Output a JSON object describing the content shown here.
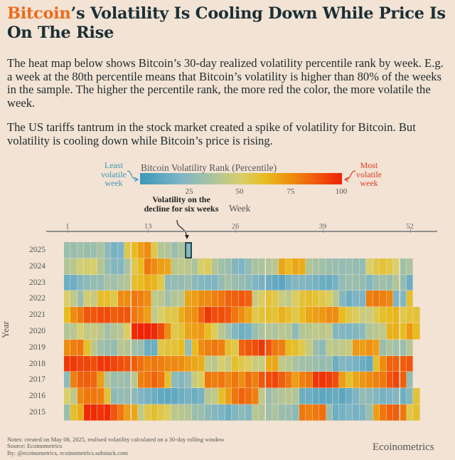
{
  "title": {
    "highlight": "Bitcoin",
    "rest": "’s Volatility Is Cooling Down While Price Is On The Rise"
  },
  "paragraphs": [
    "The heat map below shows Bitcoin’s 30-day realized volatility percentile rank by week. E.g. a week at the 80th percentile means that Bitcoin’s volatility is higher than 80% of the weeks in the sample. The higher the percentile rank, the more red the color, the more volatile the week.",
    "The US tariffs tantrum in the stock market created a spike of volatility for Bitcoin. But volatility is cooling down while Bitcoin’s price is rising."
  ],
  "legend": {
    "title": "Bitcoin Volatility Rank (Percentile)",
    "ticks": [
      "25",
      "50",
      "75",
      "100"
    ],
    "least_label": "Least volatile week",
    "most_label": "Most volatile week"
  },
  "annotation": "Volatility  on the decline for six weeks",
  "notes": [
    "Notes: created on May 08, 2025, realised volatility calculated on a 30-day rolling window",
    "Source: Ecoinometrics",
    "By: @ecoinometrics, ecoinometrics.substack.com"
  ],
  "brand": "Ecoinometrics",
  "colors": {
    "title_highlight": "#ee6a1a",
    "least": "#3f97b5",
    "most": "#d93a22",
    "scale": [
      {
        "value": 0,
        "color": "#3a98bb"
      },
      {
        "value": 20,
        "color": "#7db5c4"
      },
      {
        "value": 35,
        "color": "#a9c3a2"
      },
      {
        "value": 50,
        "color": "#d8cf6a"
      },
      {
        "value": 62,
        "color": "#e8bc1e"
      },
      {
        "value": 75,
        "color": "#ee8c10"
      },
      {
        "value": 88,
        "color": "#f0560c"
      },
      {
        "value": 100,
        "color": "#ee2205"
      }
    ]
  },
  "chart_data": {
    "type": "heatmap",
    "xlabel": "Week",
    "ylabel": "Year",
    "x_ticks": [
      "1",
      "13",
      "26",
      "39",
      "52"
    ],
    "value_range": [
      0,
      100
    ],
    "highlight": {
      "year": "2025",
      "week": 19
    },
    "rows": [
      {
        "year": "2025",
        "values": [
          30,
          30,
          32,
          30,
          30,
          35,
          25,
          18,
          20,
          55,
          62,
          70,
          75,
          55,
          38,
          38,
          30,
          36,
          22
        ]
      },
      {
        "year": "2024",
        "values": [
          38,
          40,
          48,
          48,
          50,
          38,
          28,
          22,
          22,
          35,
          55,
          62,
          80,
          75,
          70,
          68,
          40,
          42,
          40,
          36,
          50,
          52,
          38,
          32,
          30,
          22,
          20,
          28,
          35,
          36,
          38,
          40,
          68,
          62,
          68,
          66,
          38,
          35,
          32,
          30,
          30,
          28,
          30,
          28,
          28,
          50,
          55,
          58,
          55,
          50,
          32,
          36
        ]
      },
      {
        "year": "2023",
        "values": [
          15,
          15,
          22,
          26,
          28,
          28,
          34,
          32,
          36,
          38,
          60,
          62,
          66,
          64,
          55,
          25,
          28,
          28,
          30,
          25,
          22,
          22,
          20,
          28,
          34,
          30,
          28,
          25,
          20,
          18,
          15,
          12,
          10,
          18,
          22,
          22,
          20,
          18,
          15,
          14,
          18,
          28,
          30,
          30,
          28,
          22,
          30,
          32,
          30,
          38,
          28,
          15
        ]
      },
      {
        "year": "2022",
        "values": [
          50,
          42,
          30,
          48,
          44,
          60,
          60,
          55,
          75,
          75,
          80,
          78,
          75,
          42,
          40,
          32,
          38,
          40,
          68,
          70,
          75,
          75,
          78,
          80,
          85,
          85,
          88,
          85,
          45,
          52,
          58,
          55,
          45,
          42,
          52,
          58,
          60,
          58,
          55,
          52,
          40,
          22,
          15,
          20,
          20,
          78,
          80,
          78,
          76,
          20,
          22,
          60
        ]
      },
      {
        "year": "2021",
        "values": [
          62,
          75,
          80,
          88,
          88,
          90,
          90,
          86,
          88,
          88,
          80,
          76,
          70,
          42,
          50,
          55,
          55,
          66,
          72,
          75,
          85,
          95,
          90,
          90,
          88,
          80,
          75,
          68,
          55,
          58,
          60,
          58,
          65,
          60,
          55,
          62,
          68,
          70,
          72,
          75,
          75,
          62,
          55,
          52,
          45,
          45,
          55,
          60,
          62,
          64,
          55,
          58,
          58
        ]
      },
      {
        "year": "2020",
        "values": [
          38,
          40,
          50,
          42,
          44,
          40,
          32,
          38,
          40,
          52,
          98,
          100,
          100,
          98,
          90,
          75,
          55,
          58,
          68,
          70,
          72,
          62,
          52,
          40,
          32,
          22,
          15,
          18,
          30,
          36,
          38,
          36,
          40,
          38,
          25,
          38,
          40,
          42,
          40,
          42,
          22,
          22,
          20,
          22,
          25,
          38,
          40,
          42,
          65,
          65,
          62,
          72,
          62
        ]
      },
      {
        "year": "2019",
        "values": [
          75,
          78,
          80,
          60,
          40,
          32,
          30,
          28,
          40,
          38,
          32,
          30,
          15,
          15,
          55,
          58,
          58,
          62,
          28,
          62,
          75,
          78,
          80,
          78,
          60,
          55,
          85,
          88,
          90,
          95,
          88,
          80,
          78,
          62,
          60,
          55,
          44,
          30,
          25,
          42,
          40,
          42,
          44,
          72,
          70,
          74,
          70,
          30,
          36,
          32,
          30,
          40
        ]
      },
      {
        "year": "2018",
        "values": [
          95,
          95,
          92,
          92,
          90,
          95,
          95,
          92,
          90,
          88,
          86,
          82,
          78,
          80,
          78,
          76,
          76,
          75,
          70,
          68,
          66,
          42,
          40,
          50,
          45,
          60,
          55,
          52,
          45,
          45,
          66,
          68,
          42,
          40,
          35,
          32,
          32,
          30,
          28,
          30,
          15,
          22,
          20,
          18,
          15,
          12,
          60,
          75,
          85,
          85,
          86,
          88
        ]
      },
      {
        "year": "2017",
        "values": [
          25,
          78,
          85,
          86,
          84,
          70,
          38,
          30,
          32,
          30,
          40,
          78,
          80,
          85,
          80,
          60,
          25,
          22,
          28,
          45,
          52,
          80,
          78,
          80,
          76,
          80,
          75,
          82,
          78,
          88,
          90,
          92,
          86,
          80,
          70,
          78,
          80,
          95,
          96,
          94,
          90,
          70,
          60,
          68,
          72,
          75,
          78,
          80,
          88,
          92,
          86,
          28
        ]
      },
      {
        "year": "2016",
        "values": [
          50,
          42,
          76,
          80,
          80,
          78,
          58,
          25,
          28,
          28,
          25,
          20,
          18,
          15,
          12,
          10,
          12,
          15,
          18,
          15,
          18,
          40,
          42,
          60,
          70,
          80,
          85,
          82,
          78,
          42,
          30,
          36,
          38,
          40,
          38,
          15,
          15,
          12,
          10,
          12,
          14,
          10,
          15,
          20,
          28,
          25,
          22,
          18,
          20,
          22,
          15,
          22,
          58
        ]
      },
      {
        "year": "2015",
        "values": [
          30,
          60,
          66,
          98,
          98,
          96,
          98,
          88,
          80,
          70,
          68,
          42,
          55,
          60,
          55,
          52,
          40,
          40,
          38,
          30,
          30,
          25,
          22,
          20,
          15,
          22,
          25,
          22,
          40,
          38,
          32,
          36,
          30,
          30,
          25,
          80,
          78,
          80,
          82,
          30,
          15,
          18,
          20,
          18,
          20,
          30,
          70,
          80,
          85,
          86,
          80,
          55,
          60
        ]
      }
    ]
  }
}
